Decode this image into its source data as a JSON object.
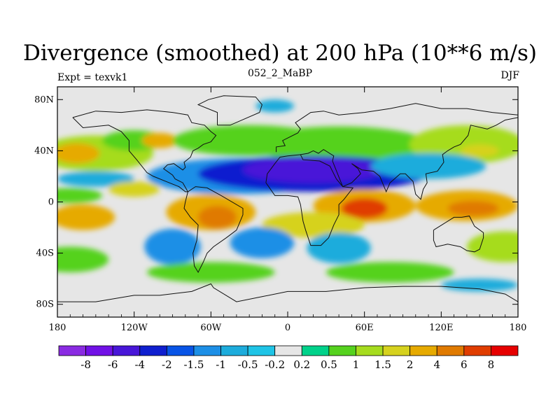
{
  "title": "Divergence (smoothed) at 200 hPa (10**6 m/s)",
  "subtitle_left": "Expt = texvk1",
  "subtitle_center": "052_2_MaBP",
  "subtitle_right": "DJF",
  "axes": {
    "x_ticks": [
      {
        "lon": -180,
        "label": "180"
      },
      {
        "lon": -120,
        "label": "120W"
      },
      {
        "lon": -60,
        "label": "60W"
      },
      {
        "lon": 0,
        "label": "0"
      },
      {
        "lon": 60,
        "label": "60E"
      },
      {
        "lon": 120,
        "label": "120E"
      },
      {
        "lon": 180,
        "label": "180"
      }
    ],
    "y_ticks": [
      {
        "lat": 80,
        "label": "80N"
      },
      {
        "lat": 40,
        "label": "40N"
      },
      {
        "lat": 0,
        "label": "0"
      },
      {
        "lat": -40,
        "label": "40S"
      },
      {
        "lat": -80,
        "label": "80S"
      }
    ],
    "lon_range": [
      -180,
      180
    ],
    "lat_range": [
      -90,
      90
    ]
  },
  "colorbar": {
    "colors": [
      "#8a2be2",
      "#7111e6",
      "#4816d8",
      "#0f1fcf",
      "#0854e6",
      "#1d8fe6",
      "#1dacdc",
      "#1fc4e6",
      "#e6e6e6",
      "#00d28a",
      "#55d21e",
      "#a6dc1e",
      "#d6d21e",
      "#e6aa00",
      "#e07a00",
      "#e03d00",
      "#e60000"
    ],
    "labels": [
      "-8",
      "-6",
      "-4",
      "-2",
      "-1.5",
      "-1",
      "-0.5",
      "-0.2",
      "0.2",
      "0.5",
      "1",
      "1.5",
      "2",
      "4",
      "6",
      "8"
    ]
  },
  "field_blobs": [
    {
      "lon": 0,
      "lat": 0,
      "rx": 200,
      "ry": 90,
      "value": 0
    },
    {
      "lon": -150,
      "lat": 38,
      "rx": 45,
      "ry": 14,
      "value": 1.0
    },
    {
      "lon": -165,
      "lat": 38,
      "rx": 18,
      "ry": 8,
      "value": 2.0
    },
    {
      "lon": -120,
      "lat": 48,
      "rx": 25,
      "ry": 8,
      "value": 0.7
    },
    {
      "lon": -100,
      "lat": 48,
      "rx": 14,
      "ry": 6,
      "value": 2.5
    },
    {
      "lon": -30,
      "lat": 48,
      "rx": 60,
      "ry": 12,
      "value": 0.8
    },
    {
      "lon": 40,
      "lat": 45,
      "rx": 70,
      "ry": 14,
      "value": 0.9
    },
    {
      "lon": 140,
      "lat": 45,
      "rx": 45,
      "ry": 15,
      "value": 1.0
    },
    {
      "lon": 150,
      "lat": 40,
      "rx": 15,
      "ry": 5,
      "value": 1.8
    },
    {
      "lon": -40,
      "lat": 20,
      "rx": 70,
      "ry": 14,
      "value": -1.5
    },
    {
      "lon": 20,
      "lat": 22,
      "rx": 90,
      "ry": 14,
      "value": -2.2
    },
    {
      "lon": 20,
      "lat": 25,
      "rx": 55,
      "ry": 10,
      "value": -4.5
    },
    {
      "lon": 110,
      "lat": 28,
      "rx": 45,
      "ry": 10,
      "value": -0.8
    },
    {
      "lon": -150,
      "lat": 18,
      "rx": 30,
      "ry": 6,
      "value": -0.6
    },
    {
      "lon": -170,
      "lat": 5,
      "rx": 25,
      "ry": 6,
      "value": 0.8
    },
    {
      "lon": -120,
      "lat": 10,
      "rx": 20,
      "ry": 6,
      "value": 1.5
    },
    {
      "lon": -60,
      "lat": -8,
      "rx": 35,
      "ry": 14,
      "value": 2.5
    },
    {
      "lon": -55,
      "lat": -12,
      "rx": 15,
      "ry": 9,
      "value": 4.5
    },
    {
      "lon": 60,
      "lat": -3,
      "rx": 40,
      "ry": 13,
      "value": 3.0
    },
    {
      "lon": 60,
      "lat": -5,
      "rx": 18,
      "ry": 8,
      "value": 6.0
    },
    {
      "lon": 140,
      "lat": -3,
      "rx": 40,
      "ry": 12,
      "value": 2.5
    },
    {
      "lon": 145,
      "lat": -5,
      "rx": 20,
      "ry": 6,
      "value": 4.5
    },
    {
      "lon": 20,
      "lat": -18,
      "rx": 40,
      "ry": 10,
      "value": 1.5
    },
    {
      "lon": -160,
      "lat": -12,
      "rx": 25,
      "ry": 10,
      "value": 2.2
    },
    {
      "lon": -90,
      "lat": -35,
      "rx": 22,
      "ry": 14,
      "value": -1.2
    },
    {
      "lon": -20,
      "lat": -32,
      "rx": 25,
      "ry": 12,
      "value": -1.5
    },
    {
      "lon": 40,
      "lat": -36,
      "rx": 25,
      "ry": 12,
      "value": -0.7
    },
    {
      "lon": -170,
      "lat": -45,
      "rx": 30,
      "ry": 10,
      "value": 0.8
    },
    {
      "lon": 170,
      "lat": -35,
      "rx": 30,
      "ry": 12,
      "value": 1.2
    },
    {
      "lon": -60,
      "lat": -55,
      "rx": 50,
      "ry": 8,
      "value": 0.8
    },
    {
      "lon": 80,
      "lat": -55,
      "rx": 50,
      "ry": 8,
      "value": 0.8
    },
    {
      "lon": 150,
      "lat": -65,
      "rx": 30,
      "ry": 5,
      "value": -0.6
    },
    {
      "lon": -10,
      "lat": 75,
      "rx": 15,
      "ry": 5,
      "value": -0.6
    }
  ],
  "coastline_polylines": [
    [
      [
        -168,
        66
      ],
      [
        -160,
        58
      ],
      [
        -140,
        60
      ],
      [
        -130,
        55
      ],
      [
        -124,
        48
      ],
      [
        -124,
        40
      ],
      [
        -118,
        33
      ],
      [
        -110,
        23
      ],
      [
        -105,
        20
      ],
      [
        -95,
        16
      ],
      [
        -85,
        12
      ],
      [
        -80,
        8
      ],
      [
        -78,
        8
      ],
      [
        -82,
        15
      ],
      [
        -88,
        18
      ],
      [
        -90,
        21
      ],
      [
        -97,
        26
      ],
      [
        -94,
        29
      ],
      [
        -89,
        30
      ],
      [
        -82,
        25
      ],
      [
        -80,
        27
      ],
      [
        -81,
        31
      ],
      [
        -76,
        35
      ],
      [
        -74,
        40
      ],
      [
        -70,
        42
      ],
      [
        -66,
        45
      ],
      [
        -60,
        47
      ],
      [
        -56,
        52
      ],
      [
        -60,
        55
      ],
      [
        -65,
        60
      ],
      [
        -75,
        62
      ],
      [
        -78,
        68
      ],
      [
        -90,
        70
      ],
      [
        -110,
        72
      ],
      [
        -130,
        70
      ],
      [
        -150,
        71
      ],
      [
        -168,
        66
      ]
    ],
    [
      [
        -78,
        8
      ],
      [
        -72,
        12
      ],
      [
        -63,
        11
      ],
      [
        -52,
        5
      ],
      [
        -35,
        -5
      ],
      [
        -35,
        -10
      ],
      [
        -40,
        -22
      ],
      [
        -48,
        -28
      ],
      [
        -58,
        -35
      ],
      [
        -63,
        -40
      ],
      [
        -66,
        -47
      ],
      [
        -70,
        -55
      ],
      [
        -73,
        -50
      ],
      [
        -74,
        -40
      ],
      [
        -71,
        -30
      ],
      [
        -70,
        -18
      ],
      [
        -76,
        -12
      ],
      [
        -81,
        -5
      ],
      [
        -80,
        0
      ],
      [
        -78,
        8
      ]
    ],
    [
      [
        -17,
        15
      ],
      [
        -10,
        5
      ],
      [
        0,
        5
      ],
      [
        8,
        4
      ],
      [
        10,
        -2
      ],
      [
        12,
        -15
      ],
      [
        14,
        -22
      ],
      [
        18,
        -34
      ],
      [
        26,
        -34
      ],
      [
        32,
        -28
      ],
      [
        36,
        -18
      ],
      [
        40,
        -10
      ],
      [
        40,
        -2
      ],
      [
        44,
        2
      ],
      [
        51,
        11
      ],
      [
        43,
        12
      ],
      [
        38,
        18
      ],
      [
        33,
        28
      ],
      [
        25,
        32
      ],
      [
        12,
        33
      ],
      [
        10,
        37
      ],
      [
        0,
        36
      ],
      [
        -6,
        35
      ],
      [
        -10,
        30
      ],
      [
        -16,
        22
      ],
      [
        -17,
        15
      ]
    ],
    [
      [
        -9,
        39
      ],
      [
        -9,
        43
      ],
      [
        -2,
        44
      ],
      [
        -4,
        48
      ],
      [
        2,
        51
      ],
      [
        8,
        54
      ],
      [
        10,
        57
      ],
      [
        6,
        62
      ],
      [
        12,
        66
      ],
      [
        18,
        70
      ],
      [
        28,
        71
      ],
      [
        40,
        68
      ],
      [
        60,
        70
      ],
      [
        80,
        73
      ],
      [
        100,
        77
      ],
      [
        120,
        73
      ],
      [
        140,
        73
      ],
      [
        160,
        70
      ],
      [
        180,
        68
      ]
    ],
    [
      [
        10,
        37
      ],
      [
        16,
        38
      ],
      [
        20,
        40
      ],
      [
        24,
        38
      ],
      [
        28,
        41
      ],
      [
        36,
        36
      ],
      [
        35,
        32
      ],
      [
        43,
        12
      ],
      [
        50,
        15
      ],
      [
        57,
        22
      ],
      [
        55,
        26
      ],
      [
        50,
        30
      ],
      [
        58,
        25
      ],
      [
        67,
        24
      ],
      [
        72,
        20
      ],
      [
        77,
        8
      ],
      [
        80,
        15
      ],
      [
        88,
        22
      ],
      [
        92,
        22
      ],
      [
        98,
        16
      ],
      [
        100,
        6
      ],
      [
        104,
        2
      ],
      [
        106,
        10
      ],
      [
        109,
        15
      ],
      [
        108,
        22
      ],
      [
        117,
        24
      ],
      [
        122,
        31
      ],
      [
        121,
        37
      ],
      [
        125,
        40
      ],
      [
        130,
        43
      ],
      [
        135,
        45
      ],
      [
        141,
        52
      ],
      [
        143,
        60
      ],
      [
        156,
        57
      ],
      [
        163,
        60
      ],
      [
        170,
        64
      ],
      [
        180,
        66
      ]
    ],
    [
      [
        114,
        -22
      ],
      [
        114,
        -30
      ],
      [
        116,
        -35
      ],
      [
        125,
        -33
      ],
      [
        135,
        -35
      ],
      [
        140,
        -38
      ],
      [
        146,
        -39
      ],
      [
        150,
        -37
      ],
      [
        153,
        -28
      ],
      [
        153,
        -24
      ],
      [
        146,
        -19
      ],
      [
        142,
        -11
      ],
      [
        136,
        -12
      ],
      [
        130,
        -12
      ],
      [
        122,
        -17
      ],
      [
        114,
        -22
      ]
    ],
    [
      [
        -180,
        -78
      ],
      [
        -150,
        -78
      ],
      [
        -120,
        -73
      ],
      [
        -100,
        -73
      ],
      [
        -75,
        -70
      ],
      [
        -60,
        -64
      ],
      [
        -58,
        -67
      ],
      [
        -40,
        -78
      ],
      [
        -20,
        -74
      ],
      [
        0,
        -70
      ],
      [
        30,
        -70
      ],
      [
        60,
        -67
      ],
      [
        90,
        -66
      ],
      [
        120,
        -66
      ],
      [
        150,
        -68
      ],
      [
        170,
        -72
      ],
      [
        180,
        -78
      ]
    ],
    [
      [
        -55,
        60
      ],
      [
        -45,
        60
      ],
      [
        -22,
        70
      ],
      [
        -20,
        76
      ],
      [
        -25,
        82
      ],
      [
        -50,
        83
      ],
      [
        -62,
        80
      ],
      [
        -70,
        76
      ],
      [
        -55,
        70
      ],
      [
        -55,
        60
      ]
    ]
  ]
}
